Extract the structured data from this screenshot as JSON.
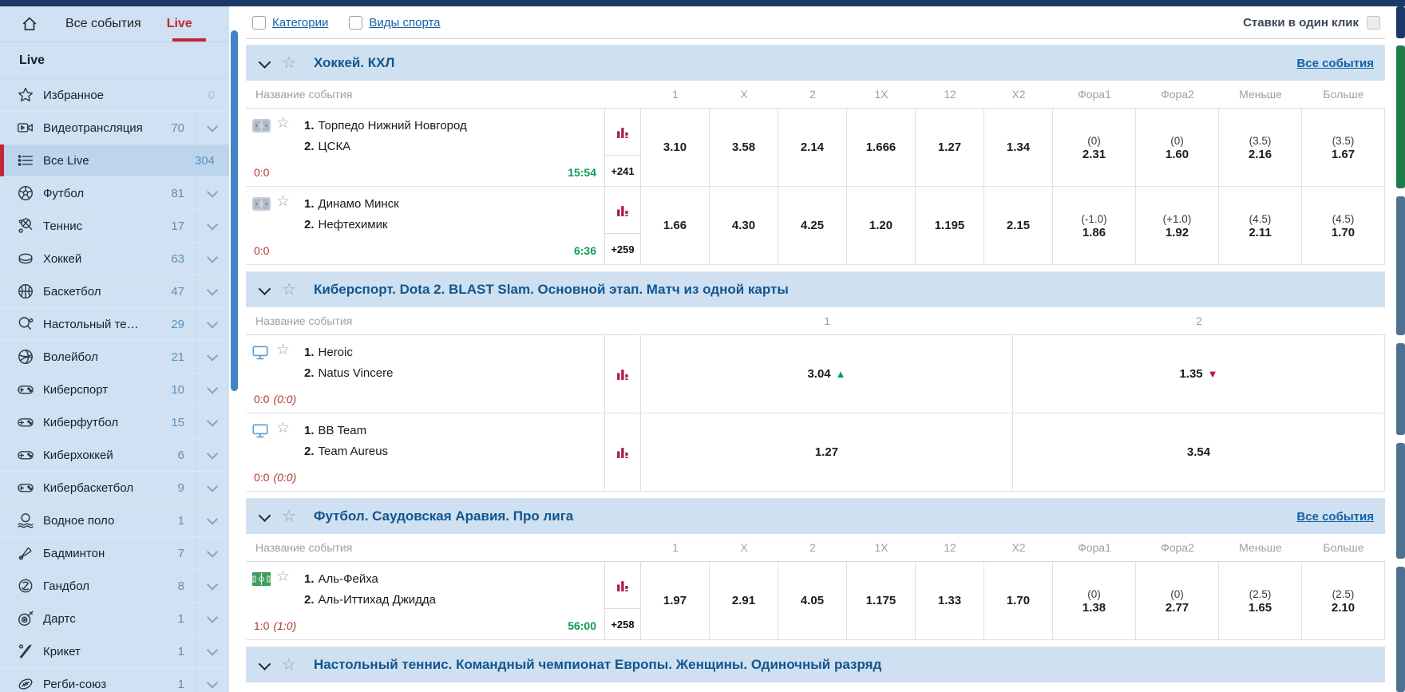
{
  "topbar": {
    "one_click_label": "Ставки в один клик"
  },
  "filters": {
    "categories": "Категории",
    "sports": "Виды спорта"
  },
  "colors": {
    "accent_red": "#c32636",
    "navy": "#1b3a68",
    "sidebar_bg": "#cfe1f2",
    "band_bg": "#cfe0f0",
    "section_title_blue": "#11568f",
    "link_blue": "#1261a8",
    "score_red": "#b2392f",
    "time_green": "#0a9d52",
    "chart_crimson": "#ab1e4d",
    "odds_up_green": "#0d9e4f",
    "odds_down_red": "#c8102e"
  },
  "sidebar": {
    "section_label": "Live",
    "tabs": [
      {
        "label": "Все события"
      },
      {
        "label": "Live"
      }
    ],
    "items": [
      {
        "icon": "star",
        "label": "Избранное",
        "count": "0",
        "muted": true,
        "chevron": false
      },
      {
        "icon": "video",
        "label": "Видеотрансляция",
        "count": "70",
        "chevron": true
      },
      {
        "icon": "list",
        "label": "Все Live",
        "count": "304",
        "selected": true,
        "chevron": false
      },
      {
        "icon": "football",
        "label": "Футбол",
        "count": "81",
        "chevron": true
      },
      {
        "icon": "tennis",
        "label": "Теннис",
        "count": "17",
        "chevron": true
      },
      {
        "icon": "hockey",
        "label": "Хоккей",
        "count": "63",
        "chevron": true
      },
      {
        "icon": "basketball",
        "label": "Баскетбол",
        "count": "47",
        "chevron": true
      },
      {
        "icon": "tabletennis",
        "label": "Настольный те…",
        "count": "29",
        "chevron": true
      },
      {
        "icon": "volleyball",
        "label": "Волейбол",
        "count": "21",
        "chevron": true
      },
      {
        "icon": "gamepad",
        "label": "Киберспорт",
        "count": "10",
        "chevron": true
      },
      {
        "icon": "gamepad",
        "label": "Киберфутбол",
        "count": "15",
        "chevron": true
      },
      {
        "icon": "gamepad",
        "label": "Киберхоккей",
        "count": "6",
        "chevron": true
      },
      {
        "icon": "gamepad",
        "label": "Кибербаскетбол",
        "count": "9",
        "chevron": true
      },
      {
        "icon": "waterpolo",
        "label": "Водное поло",
        "count": "1",
        "chevron": true
      },
      {
        "icon": "badminton",
        "label": "Бадминтон",
        "count": "7",
        "chevron": true
      },
      {
        "icon": "handball",
        "label": "Гандбол",
        "count": "8",
        "chevron": true
      },
      {
        "icon": "darts",
        "label": "Дартс",
        "count": "1",
        "chevron": true
      },
      {
        "icon": "cricket",
        "label": "Крикет",
        "count": "1",
        "chevron": true
      },
      {
        "icon": "rugby",
        "label": "Регби-союз",
        "count": "1",
        "chevron": true
      }
    ]
  },
  "sections": [
    {
      "title": "Хоккей. КХЛ",
      "all_events_label": "Все события",
      "name_col_label": "Название события",
      "columns": [
        "1",
        "X",
        "2",
        "1X",
        "12",
        "X2",
        "Фора1",
        "Фора2",
        "Меньше",
        "Больше"
      ],
      "rows": [
        {
          "icon": "rink",
          "teams": [
            {
              "num": "1.",
              "name": "Торпедо Нижний Новгород"
            },
            {
              "num": "2.",
              "name": "ЦСКА"
            }
          ],
          "score": "0:0",
          "score_detail": "",
          "time": "15:54",
          "more": "+241",
          "odds": [
            {
              "v": "3.10"
            },
            {
              "v": "3.58"
            },
            {
              "v": "2.14"
            },
            {
              "v": "1.666"
            },
            {
              "v": "1.27"
            },
            {
              "v": "1.34"
            },
            {
              "p": "(0)",
              "v": "2.31"
            },
            {
              "p": "(0)",
              "v": "1.60"
            },
            {
              "p": "(3.5)",
              "v": "2.16"
            },
            {
              "p": "(3.5)",
              "v": "1.67"
            }
          ]
        },
        {
          "icon": "rink",
          "teams": [
            {
              "num": "1.",
              "name": "Динамо Минск"
            },
            {
              "num": "2.",
              "name": "Нефтехимик"
            }
          ],
          "score": "0:0",
          "score_detail": "",
          "time": "6:36",
          "more": "+259",
          "odds": [
            {
              "v": "1.66"
            },
            {
              "v": "4.30"
            },
            {
              "v": "4.25"
            },
            {
              "v": "1.20"
            },
            {
              "v": "1.195"
            },
            {
              "v": "2.15"
            },
            {
              "p": "(-1.0)",
              "v": "1.86"
            },
            {
              "p": "(+1.0)",
              "v": "1.92"
            },
            {
              "p": "(4.5)",
              "v": "2.11"
            },
            {
              "p": "(4.5)",
              "v": "1.70"
            }
          ]
        }
      ]
    },
    {
      "title": "Киберспорт. Dota 2. BLAST Slam. Основной этап. Матч из одной карты",
      "name_col_label": "Название события",
      "columns": [
        "1",
        "2"
      ],
      "wide": true,
      "rows": [
        {
          "icon": "monitor",
          "teams": [
            {
              "num": "1.",
              "name": "Heroic"
            },
            {
              "num": "2.",
              "name": "Natus Vincere"
            }
          ],
          "score": "0:0",
          "score_detail": "(0:0)",
          "time": "",
          "more": "",
          "odds": [
            {
              "v": "3.04",
              "trend": "up"
            },
            {
              "v": "1.35",
              "trend": "down"
            }
          ]
        },
        {
          "icon": "monitor",
          "teams": [
            {
              "num": "1.",
              "name": "BB Team"
            },
            {
              "num": "2.",
              "name": "Team Aureus"
            }
          ],
          "score": "0:0",
          "score_detail": "(0:0)",
          "time": "",
          "more": "",
          "odds": [
            {
              "v": "1.27"
            },
            {
              "v": "3.54"
            }
          ]
        }
      ]
    },
    {
      "title": "Футбол. Саудовская Аравия. Про лига",
      "all_events_label": "Все события",
      "name_col_label": "Название события",
      "columns": [
        "1",
        "X",
        "2",
        "1X",
        "12",
        "X2",
        "Фора1",
        "Фора2",
        "Меньше",
        "Больше"
      ],
      "rows": [
        {
          "icon": "pitch",
          "teams": [
            {
              "num": "1.",
              "name": "Аль-Фейха"
            },
            {
              "num": "2.",
              "name": "Аль-Иттихад Джидда"
            }
          ],
          "score": "1:0",
          "score_detail": "(1:0)",
          "time": "56:00",
          "more": "+258",
          "odds": [
            {
              "v": "1.97"
            },
            {
              "v": "2.91"
            },
            {
              "v": "4.05"
            },
            {
              "v": "1.175"
            },
            {
              "v": "1.33"
            },
            {
              "v": "1.70"
            },
            {
              "p": "(0)",
              "v": "1.38"
            },
            {
              "p": "(0)",
              "v": "2.77"
            },
            {
              "p": "(2.5)",
              "v": "1.65"
            },
            {
              "p": "(2.5)",
              "v": "2.10"
            }
          ]
        }
      ]
    },
    {
      "title": "Настольный теннис. Командный чемпионат Европы. Женщины. Одиночный разряд",
      "rows": []
    }
  ]
}
